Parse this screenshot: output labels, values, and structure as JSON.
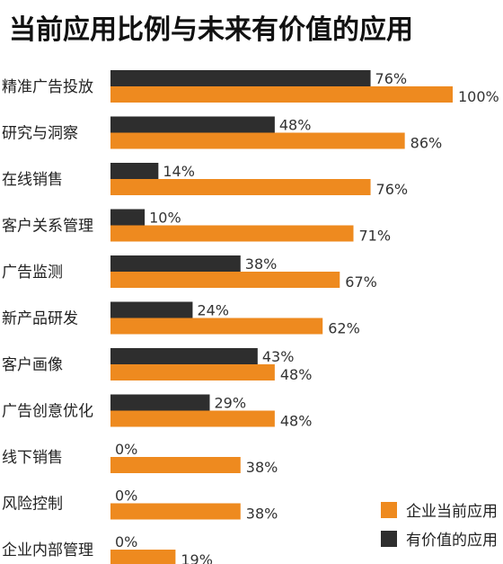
{
  "chart_data": {
    "type": "bar",
    "orientation": "horizontal",
    "title": "当前应用比例与未来有价值的应用",
    "categories": [
      "精准广告投放",
      "研究与洞察",
      "在线销售",
      "客户关系管理",
      "广告监测",
      "新产品研发",
      "客户画像",
      "广告创意优化",
      "线下销售",
      "风险控制",
      "企业内部管理"
    ],
    "series": [
      {
        "name": "有价值的应用",
        "color": "#2e2e2e",
        "values": [
          76,
          48,
          14,
          10,
          38,
          24,
          43,
          29,
          0,
          0,
          0
        ]
      },
      {
        "name": "企业当前应用",
        "color": "#ee8a1f",
        "values": [
          100,
          86,
          76,
          71,
          67,
          62,
          48,
          48,
          38,
          38,
          19
        ]
      }
    ],
    "value_suffix": "%",
    "xlim": [
      0,
      100
    ],
    "legend": {
      "placement": "bottom-right",
      "order": [
        "企业当前应用",
        "有价值的应用"
      ]
    },
    "grid": false
  }
}
